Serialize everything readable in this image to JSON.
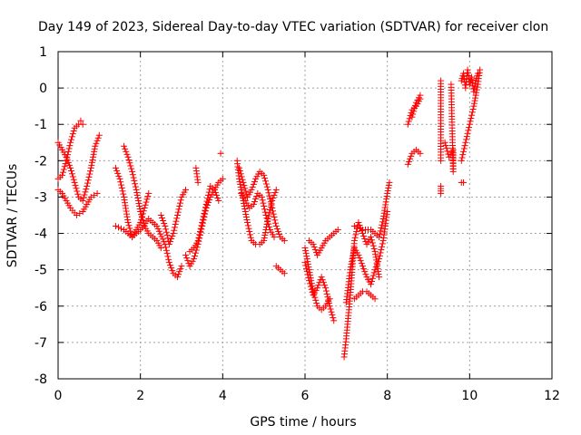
{
  "chart_data": {
    "type": "scatter",
    "title": "Day 149 of 2023, Sidereal Day-to-day VTEC variation (SDTVAR) for receiver clon",
    "xlabel": "GPS time / hours",
    "ylabel": "SDTVAR / TECUs",
    "xlim": [
      0,
      12
    ],
    "ylim": [
      -8,
      1
    ],
    "x_ticks": [
      "0",
      "2",
      "4",
      "6",
      "8",
      "10",
      "12"
    ],
    "y_ticks": [
      "1",
      "0",
      "-1",
      "-2",
      "-3",
      "-4",
      "-5",
      "-6",
      "-7",
      "-8"
    ],
    "grid": true,
    "marker": "+",
    "color": "#ff0000",
    "series": [
      {
        "segments": [
          [
            [
              0.0,
              -1.5
            ],
            [
              0.1,
              -1.7
            ],
            [
              0.2,
              -1.9
            ],
            [
              0.3,
              -2.2
            ],
            [
              0.4,
              -2.6
            ],
            [
              0.5,
              -3.0
            ],
            [
              0.6,
              -3.1
            ],
            [
              0.7,
              -2.7
            ],
            [
              0.8,
              -2.2
            ],
            [
              0.9,
              -1.6
            ],
            [
              1.0,
              -1.3
            ]
          ],
          [
            [
              0.0,
              -2.5
            ],
            [
              0.1,
              -2.4
            ],
            [
              0.2,
              -2.0
            ],
            [
              0.3,
              -1.5
            ],
            [
              0.4,
              -1.1
            ],
            [
              0.5,
              -1.0
            ],
            [
              0.55,
              -0.9
            ],
            [
              0.6,
              -1.0
            ]
          ],
          [
            [
              0.0,
              -2.8
            ],
            [
              0.1,
              -2.9
            ],
            [
              0.2,
              -3.1
            ],
            [
              0.3,
              -3.3
            ],
            [
              0.45,
              -3.5
            ],
            [
              0.6,
              -3.4
            ],
            [
              0.7,
              -3.2
            ],
            [
              0.8,
              -3.0
            ],
            [
              0.95,
              -2.9
            ]
          ],
          [
            [
              1.4,
              -2.2
            ],
            [
              1.5,
              -2.5
            ],
            [
              1.6,
              -3.0
            ],
            [
              1.7,
              -3.7
            ],
            [
              1.8,
              -4.1
            ],
            [
              1.9,
              -3.9
            ],
            [
              2.0,
              -3.7
            ],
            [
              2.1,
              -3.3
            ],
            [
              2.2,
              -2.9
            ]
          ],
          [
            [
              1.6,
              -1.6
            ],
            [
              1.7,
              -1.9
            ],
            [
              1.8,
              -2.3
            ],
            [
              1.9,
              -2.8
            ],
            [
              2.0,
              -3.4
            ],
            [
              2.1,
              -3.8
            ],
            [
              2.2,
              -4.0
            ],
            [
              2.3,
              -4.1
            ],
            [
              2.4,
              -4.2
            ],
            [
              2.5,
              -4.4
            ]
          ],
          [
            [
              1.4,
              -3.8
            ],
            [
              1.6,
              -3.9
            ],
            [
              1.8,
              -4.1
            ],
            [
              2.0,
              -3.9
            ],
            [
              2.2,
              -3.6
            ],
            [
              2.4,
              -3.8
            ],
            [
              2.6,
              -4.3
            ],
            [
              2.7,
              -4.8
            ],
            [
              2.8,
              -5.1
            ],
            [
              2.9,
              -5.2
            ],
            [
              3.0,
              -4.9
            ]
          ],
          [
            [
              2.5,
              -3.5
            ],
            [
              2.6,
              -3.8
            ],
            [
              2.7,
              -4.3
            ],
            [
              2.8,
              -4.0
            ],
            [
              2.9,
              -3.5
            ],
            [
              3.0,
              -3.0
            ],
            [
              3.1,
              -2.8
            ]
          ],
          [
            [
              3.1,
              -4.6
            ],
            [
              3.2,
              -4.9
            ],
            [
              3.3,
              -4.7
            ],
            [
              3.4,
              -4.3
            ],
            [
              3.5,
              -3.8
            ],
            [
              3.6,
              -3.3
            ],
            [
              3.7,
              -3.0
            ],
            [
              3.8,
              -2.8
            ],
            [
              3.9,
              -2.6
            ],
            [
              4.0,
              -2.5
            ]
          ],
          [
            [
              3.2,
              -4.5
            ],
            [
              3.3,
              -4.4
            ],
            [
              3.4,
              -4.2
            ],
            [
              3.5,
              -3.7
            ],
            [
              3.6,
              -3.2
            ],
            [
              3.7,
              -2.7
            ],
            [
              3.8,
              -2.8
            ],
            [
              3.9,
              -3.1
            ]
          ],
          [
            [
              3.35,
              -2.2
            ],
            [
              3.4,
              -2.6
            ]
          ],
          [
            [
              3.95,
              -1.8
            ]
          ],
          [
            [
              4.35,
              -2.0
            ],
            [
              4.4,
              -2.5
            ],
            [
              4.5,
              -3.1
            ],
            [
              4.6,
              -3.7
            ],
            [
              4.7,
              -4.2
            ],
            [
              4.8,
              -4.3
            ],
            [
              4.9,
              -4.3
            ],
            [
              5.0,
              -4.2
            ],
            [
              5.1,
              -3.6
            ],
            [
              5.2,
              -3.1
            ],
            [
              5.3,
              -2.8
            ]
          ],
          [
            [
              4.4,
              -2.2
            ],
            [
              4.5,
              -2.6
            ],
            [
              4.6,
              -3.0
            ],
            [
              4.7,
              -2.8
            ],
            [
              4.8,
              -2.5
            ],
            [
              4.9,
              -2.3
            ],
            [
              5.0,
              -2.4
            ],
            [
              5.1,
              -2.8
            ],
            [
              5.2,
              -3.3
            ],
            [
              5.3,
              -3.8
            ],
            [
              5.4,
              -4.1
            ],
            [
              5.5,
              -4.2
            ]
          ],
          [
            [
              4.45,
              -2.9
            ],
            [
              4.55,
              -3.1
            ],
            [
              4.65,
              -3.3
            ],
            [
              4.75,
              -3.2
            ],
            [
              4.85,
              -2.9
            ],
            [
              4.95,
              -3.0
            ],
            [
              5.05,
              -3.5
            ],
            [
              5.15,
              -3.9
            ],
            [
              5.25,
              -4.1
            ]
          ],
          [
            [
              5.3,
              -4.9
            ],
            [
              5.4,
              -5.0
            ],
            [
              5.5,
              -5.1
            ]
          ],
          [
            [
              6.0,
              -4.4
            ],
            [
              6.1,
              -5.0
            ],
            [
              6.2,
              -5.6
            ],
            [
              6.3,
              -6.0
            ],
            [
              6.4,
              -6.1
            ],
            [
              6.5,
              -6.0
            ],
            [
              6.6,
              -5.8
            ]
          ],
          [
            [
              6.0,
              -4.8
            ],
            [
              6.1,
              -5.3
            ],
            [
              6.2,
              -5.7
            ],
            [
              6.3,
              -5.5
            ],
            [
              6.4,
              -5.2
            ],
            [
              6.5,
              -5.5
            ],
            [
              6.6,
              -6.0
            ],
            [
              6.7,
              -6.4
            ]
          ],
          [
            [
              6.1,
              -4.2
            ],
            [
              6.2,
              -4.3
            ],
            [
              6.3,
              -4.6
            ],
            [
              6.4,
              -4.4
            ],
            [
              6.5,
              -4.2
            ],
            [
              6.6,
              -4.1
            ],
            [
              6.7,
              -4.0
            ],
            [
              6.8,
              -3.9
            ]
          ],
          [
            [
              6.95,
              -7.4
            ],
            [
              7.0,
              -6.9
            ],
            [
              7.1,
              -5.7
            ],
            [
              7.2,
              -4.2
            ],
            [
              7.3,
              -3.7
            ],
            [
              7.4,
              -4.0
            ],
            [
              7.5,
              -4.3
            ],
            [
              7.6,
              -4.1
            ],
            [
              7.7,
              -4.5
            ],
            [
              7.8,
              -5.2
            ]
          ],
          [
            [
              7.0,
              -5.9
            ],
            [
              7.1,
              -5.0
            ],
            [
              7.2,
              -4.4
            ],
            [
              7.3,
              -4.6
            ],
            [
              7.4,
              -4.9
            ],
            [
              7.5,
              -5.2
            ],
            [
              7.6,
              -5.4
            ],
            [
              7.7,
              -5.0
            ],
            [
              7.8,
              -4.7
            ],
            [
              7.9,
              -4.2
            ],
            [
              8.0,
              -3.4
            ]
          ],
          [
            [
              7.2,
              -5.8
            ],
            [
              7.3,
              -5.7
            ],
            [
              7.4,
              -5.6
            ],
            [
              7.5,
              -5.6
            ],
            [
              7.6,
              -5.7
            ],
            [
              7.7,
              -5.8
            ]
          ],
          [
            [
              7.2,
              -3.8
            ],
            [
              7.4,
              -3.9
            ],
            [
              7.6,
              -3.9
            ],
            [
              7.8,
              -4.1
            ],
            [
              7.9,
              -3.6
            ],
            [
              8.0,
              -2.9
            ],
            [
              8.05,
              -2.6
            ]
          ],
          [
            [
              8.5,
              -2.1
            ],
            [
              8.6,
              -1.8
            ],
            [
              8.7,
              -1.7
            ],
            [
              8.8,
              -1.8
            ]
          ],
          [
            [
              8.5,
              -1.0
            ],
            [
              8.6,
              -0.6
            ],
            [
              8.7,
              -0.5
            ],
            [
              8.8,
              -0.3
            ]
          ],
          [
            [
              8.6,
              -0.8
            ],
            [
              8.7,
              -0.4
            ],
            [
              8.8,
              -0.2
            ]
          ],
          [
            [
              9.3,
              -2.0
            ],
            [
              9.3,
              -0.5
            ],
            [
              9.3,
              0.2
            ]
          ],
          [
            [
              9.4,
              -1.5
            ],
            [
              9.5,
              -1.9
            ],
            [
              9.6,
              -1.7
            ],
            [
              9.6,
              -2.3
            ],
            [
              9.55,
              0.1
            ]
          ],
          [
            [
              9.3,
              -2.7
            ],
            [
              9.3,
              -2.9
            ]
          ],
          [
            [
              9.8,
              -2.6
            ],
            [
              9.85,
              -2.6
            ]
          ],
          [
            [
              9.8,
              -2.0
            ],
            [
              9.9,
              -1.5
            ],
            [
              10.0,
              -1.0
            ],
            [
              10.1,
              -0.5
            ],
            [
              10.2,
              0.1
            ],
            [
              10.25,
              0.5
            ]
          ],
          [
            [
              9.8,
              0.2
            ],
            [
              9.85,
              0.4
            ],
            [
              9.9,
              0.0
            ],
            [
              9.95,
              0.5
            ],
            [
              10.0,
              0.1
            ],
            [
              10.05,
              0.3
            ],
            [
              10.1,
              -0.1
            ],
            [
              10.15,
              0.2
            ],
            [
              10.2,
              0.4
            ]
          ]
        ]
      }
    ]
  }
}
